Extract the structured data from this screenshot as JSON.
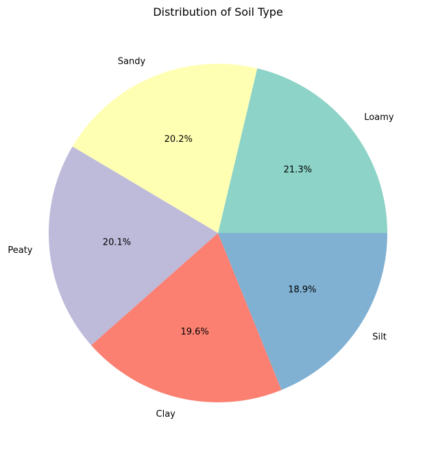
{
  "chart_data": {
    "type": "pie",
    "title": "Distribution of Soil Type",
    "start_angle_deg": 0,
    "direction": "counterclockwise",
    "legend": "none",
    "slices": [
      {
        "label": "Loamy",
        "percent": 21.3,
        "pct_label": "21.3%",
        "color": "#8dd3c7"
      },
      {
        "label": "Sandy",
        "percent": 20.2,
        "pct_label": "20.2%",
        "color": "#ffffb3"
      },
      {
        "label": "Peaty",
        "percent": 20.1,
        "pct_label": "20.1%",
        "color": "#bebada"
      },
      {
        "label": "Clay",
        "percent": 19.6,
        "pct_label": "19.6%",
        "color": "#fb8072"
      },
      {
        "label": "Silt",
        "percent": 18.9,
        "pct_label": "18.9%",
        "color": "#80b1d3"
      }
    ]
  }
}
